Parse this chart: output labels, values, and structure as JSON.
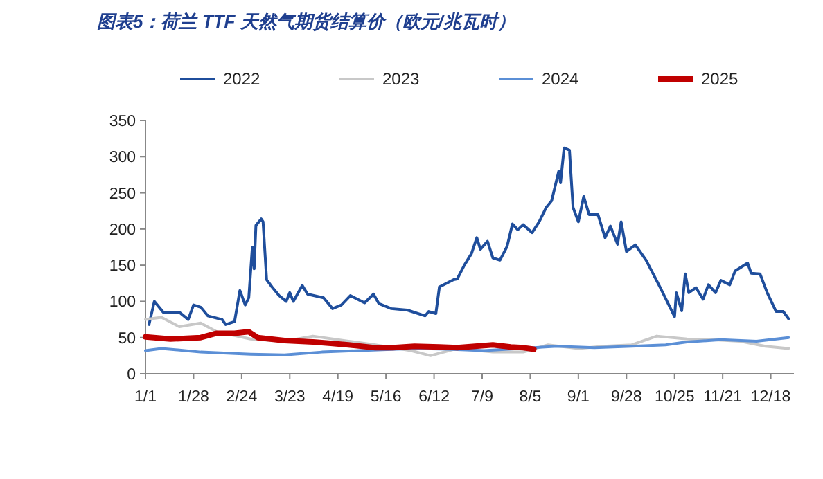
{
  "chart_data": {
    "type": "line",
    "title": "图表5：荷兰 TTF 天然气期货结算价（欧元/兆瓦时）",
    "legend": "top",
    "grid": false,
    "marker": "none",
    "line_style": "solid",
    "xlim": [
      "--01-01",
      "--12-31"
    ],
    "xticks": [
      {
        "value": "--01-01",
        "label": "1/1"
      },
      {
        "value": "--01-28",
        "label": "1/28"
      },
      {
        "value": "--02-24",
        "label": "2/24"
      },
      {
        "value": "--03-23",
        "label": "3/23"
      },
      {
        "value": "--04-19",
        "label": "4/19"
      },
      {
        "value": "--05-16",
        "label": "5/16"
      },
      {
        "value": "--06-12",
        "label": "6/12"
      },
      {
        "value": "--07-09",
        "label": "7/9"
      },
      {
        "value": "--08-05",
        "label": "8/5"
      },
      {
        "value": "--09-01",
        "label": "9/1"
      },
      {
        "value": "--09-28",
        "label": "9/28"
      },
      {
        "value": "--10-25",
        "label": "10/25"
      },
      {
        "value": "--11-21",
        "label": "11/21"
      },
      {
        "value": "--12-18",
        "label": "12/18"
      }
    ],
    "ylim": [
      0,
      350
    ],
    "yticks": [
      0,
      50,
      100,
      150,
      200,
      250,
      300,
      350
    ],
    "series": [
      {
        "name": "2022",
        "color": "#1f4e9c",
        "x": [
          "--01-03",
          "--01-06",
          "--01-11",
          "--01-20",
          "--01-25",
          "--01-28",
          "--02-01",
          "--02-05",
          "--02-13",
          "--02-15",
          "--02-20",
          "--02-23",
          "--02-26",
          "--02-28",
          "--03-02",
          "--03-03",
          "--03-04",
          "--03-07",
          "--03-08",
          "--03-10",
          "--03-13",
          "--03-17",
          "--03-21",
          "--03-23",
          "--03-25",
          "--03-30",
          "--04-02",
          "--04-11",
          "--04-16",
          "--04-21",
          "--04-26",
          "--05-04",
          "--05-09",
          "--05-12",
          "--05-19",
          "--05-28",
          "--06-07",
          "--06-09",
          "--06-13",
          "--06-15",
          "--06-23",
          "--06-25",
          "--06-29",
          "--07-03",
          "--07-06",
          "--07-08",
          "--07-12",
          "--07-15",
          "--07-19",
          "--07-23",
          "--07-26",
          "--07-29",
          "--08-01",
          "--08-06",
          "--08-10",
          "--08-14",
          "--08-17",
          "--08-21",
          "--08-22",
          "--08-24",
          "--08-27",
          "--08-29",
          "--09-01",
          "--09-04",
          "--09-07",
          "--09-12",
          "--09-16",
          "--09-19",
          "--09-23",
          "--09-25",
          "--09-28",
          "--10-03",
          "--10-09",
          "--10-17",
          "--10-25",
          "--10-26",
          "--10-29",
          "--10-31",
          "--11-02",
          "--11-06",
          "--11-10",
          "--11-13",
          "--11-17",
          "--11-20",
          "--11-25",
          "--11-28",
          "--12-05",
          "--12-07",
          "--12-12",
          "--12-16",
          "--12-21",
          "--12-25",
          "--12-28"
        ],
        "values": [
          68,
          100,
          85,
          85,
          75,
          95,
          92,
          80,
          75,
          68,
          72,
          115,
          95,
          105,
          175,
          145,
          205,
          214,
          210,
          130,
          120,
          108,
          100,
          112,
          100,
          122,
          110,
          105,
          90,
          95,
          108,
          98,
          110,
          97,
          90,
          88,
          80,
          86,
          83,
          120,
          130,
          131,
          150,
          166,
          188,
          172,
          183,
          160,
          157,
          176,
          207,
          199,
          206,
          195,
          210,
          230,
          239,
          280,
          264,
          312,
          309,
          230,
          210,
          245,
          220,
          220,
          188,
          204,
          179,
          210,
          169,
          178,
          157,
          119,
          79,
          112,
          87,
          138,
          112,
          119,
          103,
          123,
          112,
          129,
          123,
          142,
          153,
          139,
          138,
          112,
          86,
          86,
          76
        ]
      },
      {
        "name": "2023",
        "color": "#c8c8c8",
        "x": [
          "--01-01",
          "--01-10",
          "--01-20",
          "--02-01",
          "--02-10",
          "--03-01",
          "--03-20",
          "--04-05",
          "--04-25",
          "--05-10",
          "--05-30",
          "--06-10",
          "--06-25",
          "--07-15",
          "--08-01",
          "--08-15",
          "--09-01",
          "--09-15",
          "--10-01",
          "--10-15",
          "--11-01",
          "--11-15",
          "--12-01",
          "--12-15",
          "--12-28"
        ],
        "values": [
          75,
          78,
          65,
          70,
          58,
          48,
          45,
          52,
          45,
          40,
          32,
          25,
          35,
          30,
          30,
          40,
          35,
          38,
          40,
          52,
          48,
          47,
          45,
          38,
          35
        ]
      },
      {
        "name": "2024",
        "color": "#5b8fd6",
        "x": [
          "--01-01",
          "--01-10",
          "--02-01",
          "--03-01",
          "--03-20",
          "--04-10",
          "--05-01",
          "--06-01",
          "--06-20",
          "--07-10",
          "--08-20",
          "--09-10",
          "--10-01",
          "--10-20",
          "--11-01",
          "--11-20",
          "--12-10",
          "--12-28"
        ],
        "values": [
          32,
          35,
          30,
          27,
          26,
          30,
          32,
          35,
          34,
          32,
          38,
          36,
          38,
          40,
          44,
          47,
          45,
          50
        ]
      },
      {
        "name": "2025",
        "color": "#c00000",
        "x": [
          "--01-01",
          "--01-15",
          "--02-01",
          "--02-10",
          "--02-20",
          "--02-28",
          "--03-05",
          "--03-20",
          "--04-05",
          "--04-15",
          "--04-25",
          "--05-10",
          "--05-20",
          "--06-01",
          "--06-15",
          "--06-25",
          "--07-05",
          "--07-15",
          "--07-25",
          "--08-01",
          "--08-07"
        ],
        "values": [
          51,
          48,
          50,
          56,
          56,
          58,
          50,
          46,
          44,
          42,
          40,
          36,
          36,
          38,
          37,
          36,
          38,
          40,
          37,
          36,
          34
        ]
      }
    ]
  }
}
